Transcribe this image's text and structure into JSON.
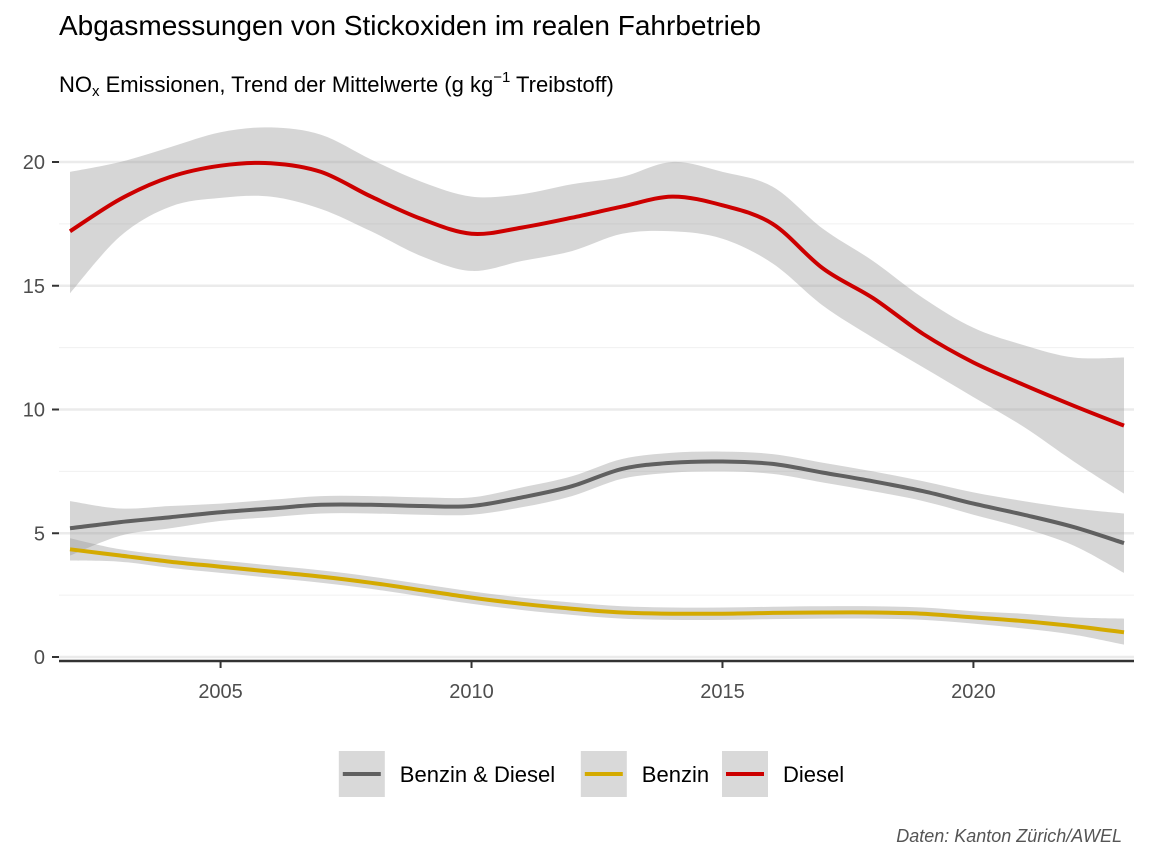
{
  "chart_data": {
    "type": "line",
    "title": "Abgasmessungen von Stickoxiden im realen Fahrbetrieb",
    "subtitle": {
      "prefix": "NO",
      "sub": "x",
      "mid": " Emissionen, Trend der Mittelwerte (g kg",
      "sup": "−1",
      "suffix": " Treibstoff)"
    },
    "caption": "Daten: Kanton Zürich/AWEL",
    "xlabel": "",
    "ylabel": "",
    "xlim": [
      2002,
      2023
    ],
    "ylim": [
      0,
      21
    ],
    "x_ticks": [
      2005,
      2010,
      2015,
      2020
    ],
    "y_ticks": [
      0,
      5,
      10,
      15,
      20
    ],
    "grid": true,
    "legend_position": "bottom",
    "x": [
      2002,
      2003,
      2004,
      2005,
      2006,
      2007,
      2008,
      2009,
      2010,
      2011,
      2012,
      2013,
      2014,
      2015,
      2016,
      2017,
      2018,
      2019,
      2020,
      2021,
      2022,
      2023
    ],
    "series": [
      {
        "name": "Benzin & Diesel",
        "color": "#606060",
        "values": [
          5.2,
          5.45,
          5.65,
          5.85,
          6.0,
          6.15,
          6.15,
          6.1,
          6.1,
          6.45,
          6.9,
          7.6,
          7.85,
          7.9,
          7.8,
          7.45,
          7.1,
          6.7,
          6.2,
          5.75,
          5.25,
          4.6
        ],
        "lower": [
          4.1,
          4.9,
          5.2,
          5.5,
          5.65,
          5.8,
          5.8,
          5.75,
          5.75,
          6.05,
          6.5,
          7.2,
          7.45,
          7.5,
          7.4,
          7.05,
          6.7,
          6.3,
          5.75,
          5.2,
          4.5,
          3.4
        ],
        "upper": [
          6.3,
          6.0,
          6.1,
          6.2,
          6.35,
          6.5,
          6.5,
          6.45,
          6.45,
          6.85,
          7.3,
          8.0,
          8.25,
          8.3,
          8.2,
          7.85,
          7.5,
          7.1,
          6.65,
          6.3,
          6.0,
          5.8
        ]
      },
      {
        "name": "Benzin",
        "color": "#d4aa00",
        "values": [
          4.35,
          4.1,
          3.85,
          3.65,
          3.45,
          3.25,
          3.0,
          2.7,
          2.4,
          2.15,
          1.95,
          1.8,
          1.75,
          1.75,
          1.78,
          1.8,
          1.8,
          1.75,
          1.6,
          1.45,
          1.25,
          1.0
        ],
        "lower": [
          3.9,
          3.85,
          3.6,
          3.4,
          3.2,
          3.0,
          2.75,
          2.45,
          2.15,
          1.9,
          1.7,
          1.55,
          1.5,
          1.5,
          1.53,
          1.55,
          1.55,
          1.5,
          1.35,
          1.15,
          0.9,
          0.5
        ],
        "upper": [
          4.8,
          4.35,
          4.1,
          3.9,
          3.7,
          3.5,
          3.25,
          2.95,
          2.65,
          2.4,
          2.2,
          2.05,
          2.0,
          2.0,
          2.03,
          2.05,
          2.05,
          2.0,
          1.85,
          1.75,
          1.6,
          1.55
        ]
      },
      {
        "name": "Diesel",
        "color": "#cc0000",
        "values": [
          17.2,
          18.5,
          19.4,
          19.85,
          19.95,
          19.6,
          18.6,
          17.7,
          17.1,
          17.35,
          17.75,
          18.2,
          18.6,
          18.25,
          17.5,
          15.7,
          14.5,
          13.05,
          11.9,
          11.0,
          10.15,
          9.35
        ],
        "lower": [
          14.7,
          17.0,
          18.2,
          18.55,
          18.6,
          18.1,
          17.2,
          16.2,
          15.6,
          16.0,
          16.4,
          17.1,
          17.2,
          16.9,
          15.9,
          14.2,
          12.9,
          11.7,
          10.5,
          9.3,
          7.9,
          6.6
        ],
        "upper": [
          19.6,
          20.0,
          20.6,
          21.2,
          21.4,
          21.1,
          20.1,
          19.2,
          18.6,
          18.7,
          19.1,
          19.4,
          20.0,
          19.6,
          19.0,
          17.3,
          16.0,
          14.5,
          13.3,
          12.6,
          12.1,
          12.1
        ]
      }
    ]
  }
}
